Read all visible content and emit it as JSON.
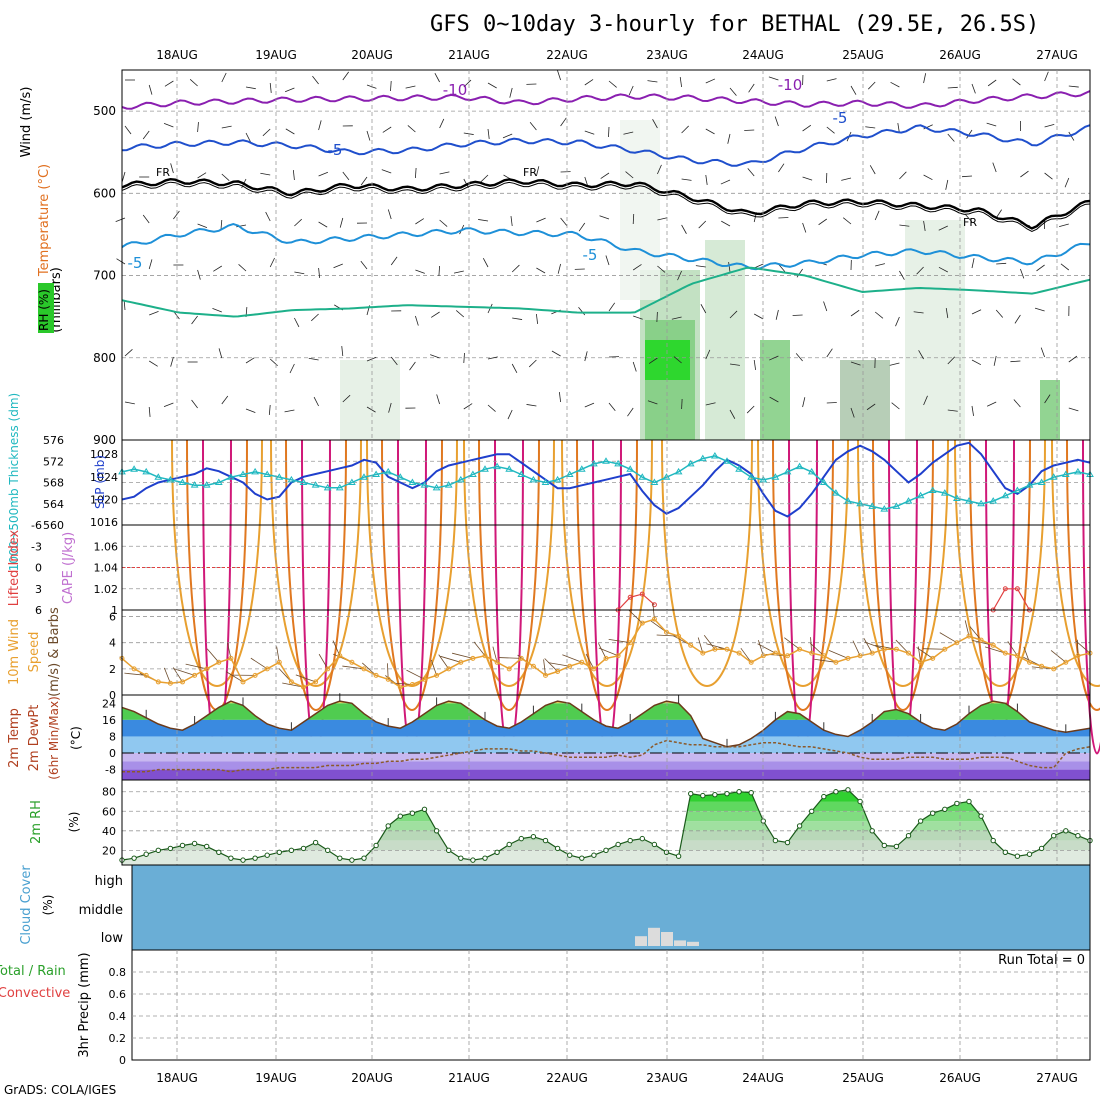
{
  "header": {
    "title": "GFS 0~10day 3-hourly for BETHAL (29.5E, 26.5S)",
    "credit": "GrADS: COLA/IGES"
  },
  "colors": {
    "dew": "#8b5a2b",
    "rh": "#2aa02a",
    "cape": "#e04040",
    "sky": "#6aaed6",
    "wind": "#e8a030",
    "slp": "#1f3fcc",
    "thick": "#20b8c0"
  },
  "chart_data": [
    {
      "type": "line",
      "panel": "upper-air",
      "x_ticks": [
        "18AUG",
        "19AUG",
        "20AUG",
        "21AUG",
        "22AUG",
        "23AUG",
        "24AUG",
        "25AUG",
        "26AUG",
        "27AUG"
      ],
      "y_ticks": [
        "500",
        "600",
        "700",
        "800",
        "900"
      ],
      "ylabel_parts": [
        "RH (%)",
        "Temperature (°C)",
        "Wind (m/s)",
        "(millibars)"
      ],
      "ylim": [
        900,
        450
      ],
      "contour_labels": [
        "-10",
        "-10",
        "-5",
        "-5",
        "FR",
        "FR",
        "FR",
        "-5",
        "-5"
      ],
      "series": [
        {
          "label": "-10",
          "values": [
            495,
            490,
            488,
            486,
            485,
            484,
            483,
            490,
            485,
            482,
            484,
            488,
            492,
            490,
            494,
            487,
            482,
            478
          ]
        },
        {
          "label": "-5",
          "values": [
            545,
            540,
            538,
            542,
            550,
            548,
            540,
            536,
            538,
            548,
            560,
            565,
            545,
            530,
            520,
            528,
            540,
            520
          ]
        },
        {
          "label": "FR",
          "values": [
            590,
            585,
            588,
            600,
            590,
            595,
            590,
            585,
            590,
            588,
            605,
            625,
            612,
            610,
            615,
            620,
            640,
            610
          ]
        },
        {
          "label": "-5",
          "values": [
            665,
            650,
            640,
            660,
            655,
            650,
            645,
            648,
            650,
            670,
            680,
            690,
            685,
            675,
            670,
            678,
            684,
            660
          ]
        }
      ]
    },
    {
      "type": "line",
      "panel": "slp-thickness",
      "x": [
        0,
        1,
        2,
        3,
        4,
        5,
        6,
        7,
        8,
        9,
        10,
        11,
        12,
        13,
        14,
        15,
        16,
        17,
        18,
        19,
        20,
        21,
        22,
        23,
        24,
        25,
        26,
        27,
        28,
        29,
        30,
        31,
        32,
        33,
        34,
        35,
        36,
        37,
        38,
        39,
        40,
        41,
        42,
        43,
        44,
        45,
        46,
        47,
        48,
        49,
        50,
        51,
        52,
        53,
        54,
        55,
        56,
        57,
        58,
        59,
        60,
        61,
        62,
        63,
        64,
        65,
        66,
        67,
        68,
        69,
        70,
        71,
        72,
        73,
        74,
        75,
        76,
        77,
        78,
        79,
        80
      ],
      "y_ticks_left": [
        "576",
        "572",
        "568",
        "564",
        "560"
      ],
      "y_ticks_right": [
        "1028",
        "1024",
        "1020",
        "1016"
      ],
      "ylabel_left": "1000~500mb Thickness (dm)",
      "ylabel_right": "SLP (mb)",
      "ylim_left": [
        560,
        576
      ],
      "ylim_right": [
        1015.5,
        1030.5
      ],
      "series": [
        {
          "name": "SLP (mb)",
          "values": [
            1020,
            1020.5,
            1022,
            1023,
            1023.5,
            1024,
            1024.5,
            1025.5,
            1025,
            1024,
            1023,
            1021,
            1020,
            1020.5,
            1023,
            1024,
            1024.5,
            1025,
            1025.5,
            1026,
            1027,
            1026.5,
            1024,
            1023,
            1022,
            1023,
            1025,
            1026,
            1026.5,
            1027,
            1027.5,
            1028,
            1028,
            1026.5,
            1025,
            1023.5,
            1022,
            1022,
            1022.5,
            1023,
            1023.5,
            1024,
            1024.5,
            1021.5,
            1019,
            1017.5,
            1018.5,
            1020.5,
            1022.5,
            1025,
            1027,
            1026,
            1024.5,
            1021,
            1018,
            1017,
            1018.5,
            1021,
            1024,
            1027,
            1028.5,
            1029.5,
            1028.5,
            1027,
            1025,
            1023,
            1024.5,
            1026.5,
            1028,
            1029.5,
            1030,
            1028,
            1025,
            1022,
            1021,
            1022.5,
            1025,
            1026,
            1026.5,
            1027,
            1026.5
          ]
        },
        {
          "name": "Thickness (dm)",
          "values": [
            570,
            570.5,
            570,
            569,
            568.5,
            568,
            567.5,
            567.5,
            568,
            569,
            569.5,
            570,
            569.5,
            569,
            568.5,
            568,
            567.5,
            567,
            567,
            568,
            569,
            569.5,
            570,
            569,
            568,
            567.5,
            567,
            567.5,
            568.5,
            569.5,
            570.5,
            571,
            570.5,
            569.5,
            568.5,
            568,
            568.5,
            569.5,
            570.5,
            571.5,
            572,
            571.5,
            570.5,
            569,
            568,
            569,
            570,
            571.5,
            572.5,
            573,
            572,
            570.5,
            569,
            568.5,
            569,
            570,
            571,
            570,
            568,
            566,
            564.5,
            564,
            563.5,
            563,
            563.5,
            564.5,
            565.5,
            566.5,
            566,
            565,
            564.5,
            564,
            564.5,
            565.5,
            566.5,
            567.5,
            568,
            569,
            569.5,
            570,
            569.5
          ]
        }
      ]
    },
    {
      "type": "line",
      "panel": "stability",
      "y_ticks_left": [
        "-6",
        "-3",
        "0",
        "3",
        "6"
      ],
      "y_ticks_right": [
        "1.06",
        "1.04",
        "1.02",
        "1"
      ],
      "ylabel_left": "Lifted Index",
      "ylabel_right": "CAPE (J/kg)",
      "ylim_left": [
        6,
        -6
      ],
      "ylim_right": [
        1.0,
        1.08
      ],
      "series": [
        {
          "name": "CAPE (J/kg)",
          "x": [
            41,
            42,
            43,
            44
          ],
          "values": [
            1.0,
            1.012,
            1.015,
            1.005
          ]
        },
        {
          "name": "CAPE 2",
          "x": [
            72,
            73,
            74,
            75
          ],
          "values": [
            1.0,
            1.02,
            1.02,
            1.0
          ]
        }
      ]
    },
    {
      "type": "line",
      "panel": "wind",
      "y_ticks": [
        "0",
        "2",
        "4",
        "6"
      ],
      "ylabel": "10m Wind Speed (m/s) & Barbs",
      "ylim": [
        0,
        6.5
      ],
      "series": [
        {
          "name": "Speed (m/s)",
          "values": [
            2.8,
            2,
            1.5,
            1,
            0.9,
            1,
            1.5,
            2,
            2.5,
            2.8,
            1,
            1.5,
            2,
            2.5,
            1,
            0.6,
            1,
            2,
            3,
            2.5,
            2,
            1.5,
            1.2,
            0.6,
            0.8,
            1.2,
            1.5,
            2,
            2.5,
            2.8,
            3,
            2.5,
            2,
            2.8,
            2.2,
            1.5,
            1.8,
            2.2,
            2.5,
            2,
            2.8,
            3,
            4,
            5.5,
            5.8,
            4.8,
            4.5,
            3.8,
            3.2,
            3.5,
            3.5,
            3.2,
            2.5,
            3,
            3.2,
            3,
            3.5,
            3.2,
            3,
            2.5,
            2.8,
            3,
            3.2,
            3.5,
            3.5,
            3.2,
            2.5,
            2.8,
            3.5,
            4,
            4.5,
            4.2,
            3.8,
            3.2,
            3,
            2.5,
            2.2,
            2,
            2.5,
            3,
            3.2
          ]
        }
      ]
    },
    {
      "type": "area",
      "panel": "temperature",
      "y_ticks": [
        "24",
        "16",
        "8",
        "0",
        "-8"
      ],
      "ylabel": "2m Temp 2m DewPt (6hr Min/Max) (°C)",
      "ylim": [
        -13,
        28
      ],
      "series": [
        {
          "name": "2m Temp (°C)",
          "values": [
            22,
            20,
            17,
            14,
            12,
            11,
            14,
            18,
            22,
            25,
            23,
            18,
            14,
            12,
            11,
            15,
            19,
            23,
            25,
            24,
            19,
            15,
            13,
            12,
            15,
            19,
            23,
            25,
            24,
            20,
            16,
            13,
            12,
            15,
            19,
            23,
            25,
            24,
            20,
            16,
            13,
            12,
            15,
            19,
            23,
            25,
            24,
            18,
            7,
            5,
            3,
            4,
            7,
            11,
            16,
            20,
            19,
            15,
            11,
            9,
            8,
            11,
            15,
            20,
            21,
            19,
            15,
            12,
            11,
            14,
            19,
            23,
            25,
            24,
            20,
            15,
            13,
            11,
            10,
            11,
            12
          ]
        },
        {
          "name": "2m DewPt (°C)",
          "values": [
            -9,
            -9,
            -9,
            -8,
            -8,
            -8,
            -8,
            -8,
            -8,
            -9,
            -8,
            -8,
            -8,
            -7,
            -7,
            -7,
            -7,
            -6,
            -6,
            -6,
            -5,
            -5,
            -4,
            -4,
            -3,
            -3,
            -2,
            -1,
            0,
            1,
            2,
            2,
            2,
            1,
            1,
            0,
            -1,
            -2,
            -2,
            -2,
            -2,
            -1,
            -2,
            -1,
            4,
            6,
            5,
            4,
            4,
            3,
            3,
            3,
            4,
            5,
            5,
            4,
            3,
            3,
            2,
            1,
            0,
            -2,
            -3,
            -3,
            -3,
            -2,
            -2,
            -2,
            -3,
            -3,
            -3,
            -2,
            -2,
            -2,
            -4,
            -6,
            -7,
            -7,
            0,
            2,
            3
          ]
        }
      ]
    },
    {
      "type": "area",
      "panel": "rh",
      "y_ticks": [
        "80",
        "60",
        "40",
        "20"
      ],
      "ylabel": "2m RH (%)",
      "ylim": [
        5,
        92
      ],
      "series": [
        {
          "name": "2m RH (%)",
          "values": [
            10,
            12,
            16,
            20,
            22,
            25,
            27,
            24,
            18,
            12,
            10,
            12,
            15,
            18,
            20,
            22,
            28,
            20,
            12,
            10,
            12,
            25,
            45,
            55,
            58,
            62,
            40,
            20,
            12,
            10,
            12,
            18,
            26,
            32,
            34,
            30,
            22,
            15,
            12,
            15,
            20,
            26,
            30,
            32,
            26,
            18,
            14,
            78,
            76,
            77,
            78,
            80,
            79,
            50,
            30,
            28,
            45,
            60,
            75,
            80,
            82,
            70,
            40,
            25,
            24,
            35,
            50,
            58,
            62,
            68,
            70,
            55,
            30,
            18,
            14,
            16,
            22,
            35,
            40,
            35,
            30
          ]
        }
      ]
    },
    {
      "type": "bar",
      "panel": "cloud",
      "y_ticks": [
        "high",
        "middle",
        "low"
      ],
      "ylabel": "Cloud Cover (%)",
      "series": [
        {
          "name": "low",
          "x": [
            42,
            43,
            44,
            45,
            46
          ],
          "values": [
            0.35,
            0.65,
            0.5,
            0.2,
            0.15
          ]
        }
      ]
    },
    {
      "type": "bar",
      "panel": "precip",
      "y_ticks": [
        "0.8",
        "0.6",
        "0.4",
        "0.2",
        "0"
      ],
      "ylabel_parts": [
        "Total / Rain",
        "Convective",
        "3hr Precip (mm)"
      ],
      "ylim": [
        0,
        1.0
      ],
      "run_total": "Run Total = 0"
    }
  ]
}
